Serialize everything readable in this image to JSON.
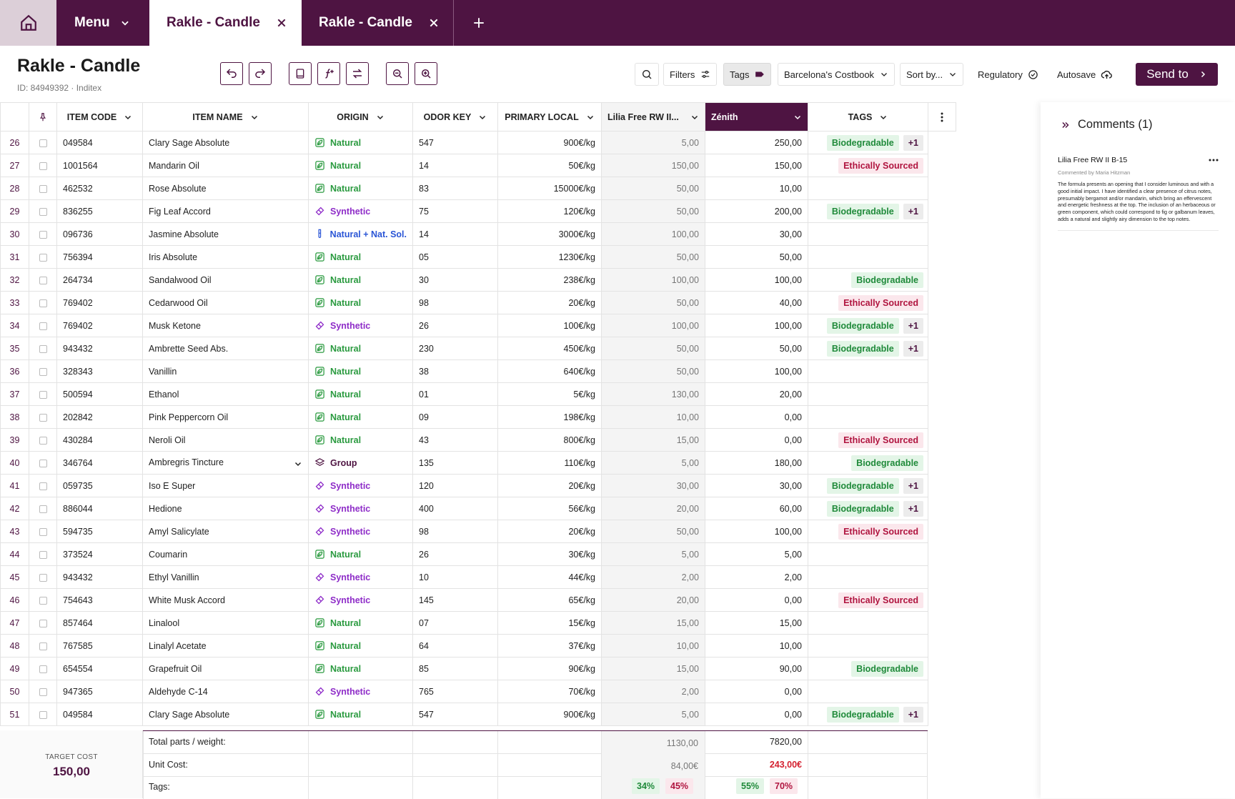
{
  "tabs": {
    "menu": "Menu",
    "tab1": "Rakle - Candle",
    "tab2": "Rakle - Candle"
  },
  "header": {
    "title": "Rakle - Candle",
    "subtitle": "ID: 84949392 · Inditex"
  },
  "toolbar": {
    "filters": "Filters",
    "tags": "Tags",
    "costbook": "Barcelona's Costbook",
    "sort": "Sort by...",
    "regulatory": "Regulatory",
    "autosave": "Autosave",
    "send": "Send to"
  },
  "columns": {
    "item_code": "ITEM CODE",
    "item_name": "ITEM NAME",
    "origin": "ORIGIN",
    "odor_key": "ODOR KEY",
    "primary_local": "PRIMARY LOCAL",
    "lilia": "Lilia Free RW II...",
    "zenith": "Zénith",
    "tags": "TAGS"
  },
  "rows": [
    {
      "n": "26",
      "code": "049584",
      "name": "Clary Sage Absolute",
      "origin": "Natural",
      "okind": "nat",
      "odor": "547",
      "price": "900€/kg",
      "lilia": "5,00",
      "zen": "250,00",
      "tag": "Biodegradable",
      "tk": "bg",
      "plus": "+1"
    },
    {
      "n": "27",
      "code": "1001564",
      "name": "Mandarin Oil",
      "origin": "Natural",
      "okind": "nat",
      "odor": "14",
      "price": "50€/kg",
      "lilia": "150,00",
      "zen": "150,00",
      "tag": "Ethically Sourced",
      "tk": "be",
      "plus": ""
    },
    {
      "n": "28",
      "code": "462532",
      "name": "Rose Absolute",
      "origin": "Natural",
      "okind": "nat",
      "odor": "83",
      "price": "15000€/kg",
      "lilia": "50,00",
      "zen": "10,00",
      "tag": "",
      "tk": "",
      "plus": ""
    },
    {
      "n": "29",
      "code": "836255",
      "name": "Fig Leaf Accord",
      "origin": "Synthetic",
      "okind": "syn",
      "odor": "75",
      "price": "120€/kg",
      "lilia": "50,00",
      "zen": "200,00",
      "tag": "Biodegradable",
      "tk": "bg",
      "plus": "+1"
    },
    {
      "n": "30",
      "code": "096736",
      "name": "Jasmine Absolute",
      "origin": "Natural + Nat. Sol.",
      "okind": "mix",
      "odor": "14",
      "price": "3000€/kg",
      "lilia": "100,00",
      "zen": "30,00",
      "tag": "",
      "tk": "",
      "plus": ""
    },
    {
      "n": "31",
      "code": "756394",
      "name": "Iris Absolute",
      "origin": "Natural",
      "okind": "nat",
      "odor": "05",
      "price": "1230€/kg",
      "lilia": "50,00",
      "zen": "50,00",
      "tag": "",
      "tk": "",
      "plus": ""
    },
    {
      "n": "32",
      "code": "264734",
      "name": "Sandalwood Oil",
      "origin": "Natural",
      "okind": "nat",
      "odor": "30",
      "price": "238€/kg",
      "lilia": "100,00",
      "zen": "100,00",
      "tag": "Biodegradable",
      "tk": "bg",
      "plus": ""
    },
    {
      "n": "33",
      "code": "769402",
      "name": "Cedarwood Oil",
      "origin": "Natural",
      "okind": "nat",
      "odor": "98",
      "price": "20€/kg",
      "lilia": "50,00",
      "zen": "40,00",
      "tag": "Ethically Sourced",
      "tk": "be",
      "plus": ""
    },
    {
      "n": "34",
      "code": "769402",
      "name": "Musk Ketone",
      "origin": "Synthetic",
      "okind": "syn",
      "odor": "26",
      "price": "100€/kg",
      "lilia": "100,00",
      "zen": "100,00",
      "tag": "Biodegradable",
      "tk": "bg",
      "plus": "+1"
    },
    {
      "n": "35",
      "code": "943432",
      "name": "Ambrette Seed Abs.",
      "origin": "Natural",
      "okind": "nat",
      "odor": "230",
      "price": "450€/kg",
      "lilia": "50,00",
      "zen": "50,00",
      "tag": "Biodegradable",
      "tk": "bg",
      "plus": "+1"
    },
    {
      "n": "36",
      "code": "328343",
      "name": "Vanillin",
      "origin": "Natural",
      "okind": "nat",
      "odor": "38",
      "price": "640€/kg",
      "lilia": "50,00",
      "zen": "100,00",
      "tag": "",
      "tk": "",
      "plus": ""
    },
    {
      "n": "37",
      "code": "500594",
      "name": "Ethanol",
      "origin": "Natural",
      "okind": "nat",
      "odor": "01",
      "price": "5€/kg",
      "lilia": "130,00",
      "zen": "20,00",
      "tag": "",
      "tk": "",
      "plus": ""
    },
    {
      "n": "38",
      "code": "202842",
      "name": "Pink Peppercorn Oil",
      "origin": "Natural",
      "okind": "nat",
      "odor": "09",
      "price": "198€/kg",
      "lilia": "10,00",
      "zen": "0,00",
      "tag": "",
      "tk": "",
      "plus": ""
    },
    {
      "n": "39",
      "code": "430284",
      "name": "Neroli Oil",
      "origin": "Natural",
      "okind": "nat",
      "odor": "43",
      "price": "800€/kg",
      "lilia": "15,00",
      "zen": "0,00",
      "tag": "Ethically Sourced",
      "tk": "be",
      "plus": ""
    },
    {
      "n": "40",
      "code": "346764",
      "name": "Ambregris Tincture",
      "origin": "Group",
      "okind": "grp",
      "odor": "135",
      "price": "110€/kg",
      "lilia": "5,00",
      "zen": "180,00",
      "tag": "Biodegradable",
      "tk": "bg",
      "plus": "",
      "expand": true
    },
    {
      "n": "41",
      "code": "059735",
      "name": "Iso E Super",
      "origin": "Synthetic",
      "okind": "syn",
      "odor": "120",
      "price": "20€/kg",
      "lilia": "30,00",
      "zen": "30,00",
      "tag": "Biodegradable",
      "tk": "bg",
      "plus": "+1"
    },
    {
      "n": "42",
      "code": "886044",
      "name": "Hedione",
      "origin": "Synthetic",
      "okind": "syn",
      "odor": "400",
      "price": "56€/kg",
      "lilia": "20,00",
      "zen": "60,00",
      "tag": "Biodegradable",
      "tk": "bg",
      "plus": "+1"
    },
    {
      "n": "43",
      "code": "594735",
      "name": "Amyl Salicylate",
      "origin": "Synthetic",
      "okind": "syn",
      "odor": "98",
      "price": "20€/kg",
      "lilia": "50,00",
      "zen": "100,00",
      "tag": "Ethically Sourced",
      "tk": "be",
      "plus": ""
    },
    {
      "n": "44",
      "code": "373524",
      "name": "Coumarin",
      "origin": "Natural",
      "okind": "nat",
      "odor": "26",
      "price": "30€/kg",
      "lilia": "5,00",
      "zen": "5,00",
      "tag": "",
      "tk": "",
      "plus": ""
    },
    {
      "n": "45",
      "code": "943432",
      "name": "Ethyl Vanillin",
      "origin": "Synthetic",
      "okind": "syn",
      "odor": "10",
      "price": "44€/kg",
      "lilia": "2,00",
      "zen": "2,00",
      "tag": "",
      "tk": "",
      "plus": ""
    },
    {
      "n": "46",
      "code": "754643",
      "name": "White Musk Accord",
      "origin": "Synthetic",
      "okind": "syn",
      "odor": "145",
      "price": "65€/kg",
      "lilia": "20,00",
      "zen": "0,00",
      "tag": "Ethically Sourced",
      "tk": "be",
      "plus": ""
    },
    {
      "n": "47",
      "code": "857464",
      "name": "Linalool",
      "origin": "Natural",
      "okind": "nat",
      "odor": "07",
      "price": "15€/kg",
      "lilia": "15,00",
      "zen": "15,00",
      "tag": "",
      "tk": "",
      "plus": ""
    },
    {
      "n": "48",
      "code": "767585",
      "name": "Linalyl Acetate",
      "origin": "Natural",
      "okind": "nat",
      "odor": "64",
      "price": "37€/kg",
      "lilia": "10,00",
      "zen": "10,00",
      "tag": "",
      "tk": "",
      "plus": ""
    },
    {
      "n": "49",
      "code": "654554",
      "name": "Grapefruit Oil",
      "origin": "Natural",
      "okind": "nat",
      "odor": "85",
      "price": "90€/kg",
      "lilia": "15,00",
      "zen": "90,00",
      "tag": "Biodegradable",
      "tk": "bg",
      "plus": ""
    },
    {
      "n": "50",
      "code": "947365",
      "name": "Aldehyde C-14",
      "origin": "Synthetic",
      "okind": "syn",
      "odor": "765",
      "price": "70€/kg",
      "lilia": "2,00",
      "zen": "0,00",
      "tag": "",
      "tk": "",
      "plus": ""
    },
    {
      "n": "51",
      "code": "049584",
      "name": "Clary Sage Absolute",
      "origin": "Natural",
      "okind": "nat",
      "odor": "547",
      "price": "900€/kg",
      "lilia": "5,00",
      "zen": "0,00",
      "tag": "Biodegradable",
      "tk": "bg",
      "plus": "+1"
    }
  ],
  "footer": {
    "target_label": "TARGET COST",
    "target_value": "150,00",
    "total_label": "Total parts / weight:",
    "total_lilia": "1130,00",
    "total_zen": "7820,00",
    "unit_label": "Unit Cost:",
    "unit_lilia": "84,00€",
    "unit_zen": "243,00€",
    "tags_label": "Tags:",
    "tags_lilia_green": "34%",
    "tags_lilia_red": "45%",
    "tags_zen_green": "55%",
    "tags_zen_red": "70%"
  },
  "comments": {
    "title": "Comments (1)",
    "item_title": "Lilia Free RW II B-15",
    "author": "Commented by Maria Hitzman",
    "body": "The formula presents an opening that I consider luminous and with a good initial impact. I have identified a clear presence of citrus notes, presumably bergamot and/or mandarin, which bring an effervescent and energetic freshness at the top. The inclusion of an herbaceous or green component, which could correspond to fig or galbanum leaves, adds a natural and slightly airy dimension to the top notes."
  },
  "colors": {
    "brand": "#4e1442",
    "natural": "#2a9a3f",
    "synthetic": "#8e2cc8",
    "mixed": "#2a55d6"
  }
}
